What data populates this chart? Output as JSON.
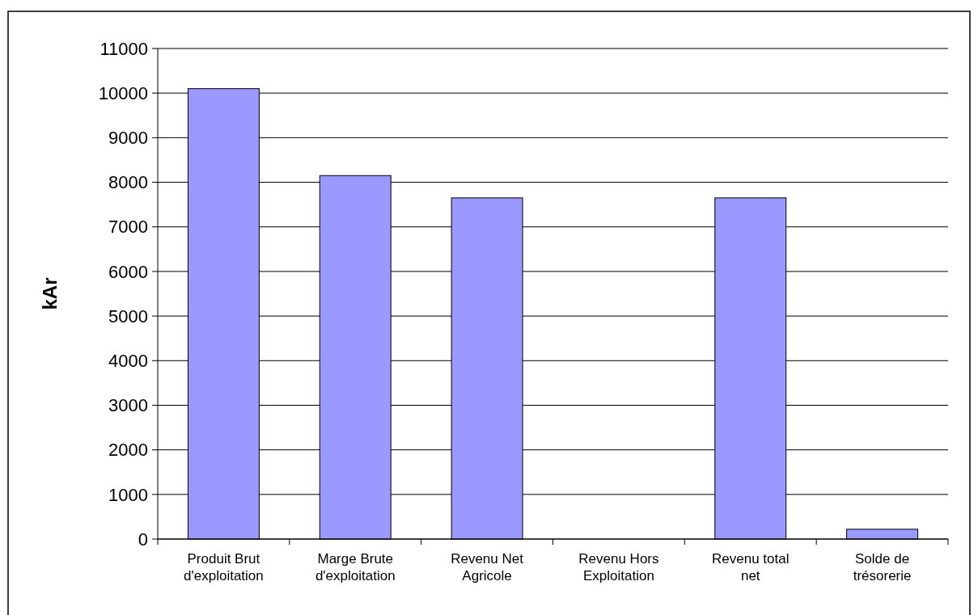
{
  "chart_data": {
    "type": "bar",
    "ylabel": "kAr",
    "categories": [
      "Produit Brut d'exploitation",
      "Marge Brute d'exploitation",
      "Revenu Net Agricole",
      "Revenu Hors Exploitation",
      "Revenu total net",
      "Solde de trésorerie"
    ],
    "values": [
      10100,
      8150,
      7650,
      0,
      7650,
      220
    ],
    "color": "#9999ff",
    "ylim": [
      0,
      11000
    ],
    "yticks": [
      0,
      1000,
      2000,
      3000,
      4000,
      5000,
      6000,
      7000,
      8000,
      9000,
      10000,
      11000
    ],
    "grid": "y"
  }
}
